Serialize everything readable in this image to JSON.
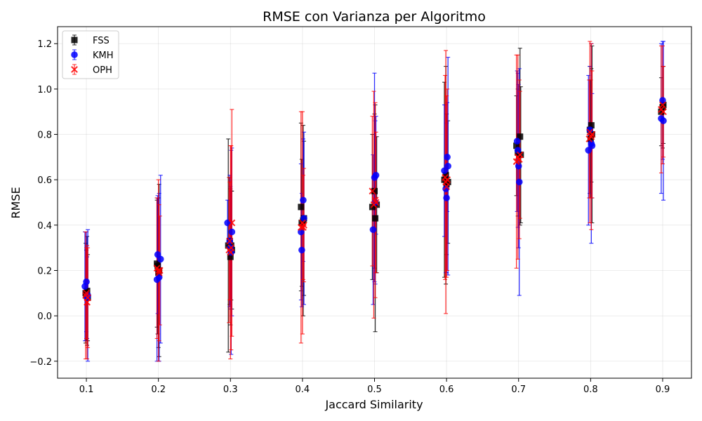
{
  "chart_data": {
    "type": "scatter",
    "title": "RMSE con Varianza per Algoritmo",
    "xlabel": "Jaccard Similarity",
    "ylabel": "RMSE",
    "xlim": [
      0.06,
      0.94
    ],
    "ylim": [
      -0.275,
      1.275
    ],
    "xticks": [
      0.1,
      0.2,
      0.3,
      0.4,
      0.5,
      0.6,
      0.7,
      0.8,
      0.9
    ],
    "xtick_labels": [
      "0.1",
      "0.2",
      "0.3",
      "0.4",
      "0.5",
      "0.6",
      "0.7",
      "0.8",
      "0.9"
    ],
    "yticks": [
      -0.2,
      0.0,
      0.2,
      0.4,
      0.6,
      0.8,
      1.0,
      1.2
    ],
    "ytick_labels": [
      "−0.2",
      "0.0",
      "0.2",
      "0.4",
      "0.6",
      "0.8",
      "1.0",
      "1.2"
    ],
    "grid": true,
    "legend_position": "top-left",
    "series": [
      {
        "name": "FSS",
        "color": "#000000",
        "marker": "square",
        "points": [
          {
            "x": 0.099,
            "y": 0.1,
            "err": 0.22
          },
          {
            "x": 0.101,
            "y": 0.11,
            "err": 0.24
          },
          {
            "x": 0.1,
            "y": 0.09,
            "err": 0.2
          },
          {
            "x": 0.102,
            "y": 0.08,
            "err": 0.19
          },
          {
            "x": 0.199,
            "y": 0.22,
            "err": 0.3
          },
          {
            "x": 0.201,
            "y": 0.2,
            "err": 0.38
          },
          {
            "x": 0.2,
            "y": 0.19,
            "err": 0.33
          },
          {
            "x": 0.198,
            "y": 0.23,
            "err": 0.28
          },
          {
            "x": 0.297,
            "y": 0.31,
            "err": 0.47
          },
          {
            "x": 0.3,
            "y": 0.26,
            "err": 0.3
          },
          {
            "x": 0.302,
            "y": 0.29,
            "err": 0.26
          },
          {
            "x": 0.299,
            "y": 0.33,
            "err": 0.28
          },
          {
            "x": 0.301,
            "y": 0.31,
            "err": 0.24
          },
          {
            "x": 0.398,
            "y": 0.48,
            "err": 0.37
          },
          {
            "x": 0.401,
            "y": 0.42,
            "err": 0.42
          },
          {
            "x": 0.402,
            "y": 0.43,
            "err": 0.34
          },
          {
            "x": 0.399,
            "y": 0.41,
            "err": 0.28
          },
          {
            "x": 0.497,
            "y": 0.48,
            "err": 0.32
          },
          {
            "x": 0.5,
            "y": 0.55,
            "err": 0.34
          },
          {
            "x": 0.501,
            "y": 0.43,
            "err": 0.5
          },
          {
            "x": 0.503,
            "y": 0.49,
            "err": 0.3
          },
          {
            "x": 0.597,
            "y": 0.6,
            "err": 0.43
          },
          {
            "x": 0.599,
            "y": 0.62,
            "err": 0.48
          },
          {
            "x": 0.602,
            "y": 0.59,
            "err": 0.27
          },
          {
            "x": 0.6,
            "y": 0.58,
            "err": 0.31
          },
          {
            "x": 0.697,
            "y": 0.75,
            "err": 0.22
          },
          {
            "x": 0.702,
            "y": 0.79,
            "err": 0.39
          },
          {
            "x": 0.703,
            "y": 0.71,
            "err": 0.3
          },
          {
            "x": 0.699,
            "y": 0.72,
            "err": 0.28
          },
          {
            "x": 0.799,
            "y": 0.82,
            "err": 0.28
          },
          {
            "x": 0.801,
            "y": 0.84,
            "err": 0.25
          },
          {
            "x": 0.802,
            "y": 0.8,
            "err": 0.39
          },
          {
            "x": 0.8,
            "y": 0.78,
            "err": 0.26
          },
          {
            "x": 0.898,
            "y": 0.9,
            "err": 0.15
          },
          {
            "x": 0.901,
            "y": 0.93,
            "err": 0.17
          },
          {
            "x": 0.9,
            "y": 0.92,
            "err": 0.18
          }
        ]
      },
      {
        "name": "KMH",
        "color": "#0000ff",
        "marker": "circle",
        "points": [
          {
            "x": 0.098,
            "y": 0.13,
            "err": 0.24
          },
          {
            "x": 0.1,
            "y": 0.15,
            "err": 0.22
          },
          {
            "x": 0.102,
            "y": 0.09,
            "err": 0.29
          },
          {
            "x": 0.101,
            "y": 0.08,
            "err": 0.18
          },
          {
            "x": 0.198,
            "y": 0.16,
            "err": 0.36
          },
          {
            "x": 0.199,
            "y": 0.27,
            "err": 0.26
          },
          {
            "x": 0.201,
            "y": 0.17,
            "err": 0.37
          },
          {
            "x": 0.203,
            "y": 0.25,
            "err": 0.37
          },
          {
            "x": 0.296,
            "y": 0.41,
            "err": 0.1
          },
          {
            "x": 0.299,
            "y": 0.33,
            "err": 0.29
          },
          {
            "x": 0.3,
            "y": 0.3,
            "err": 0.27
          },
          {
            "x": 0.302,
            "y": 0.37,
            "err": 0.37
          },
          {
            "x": 0.301,
            "y": 0.28,
            "err": 0.45
          },
          {
            "x": 0.398,
            "y": 0.37,
            "err": 0.3
          },
          {
            "x": 0.399,
            "y": 0.29,
            "err": 0.25
          },
          {
            "x": 0.401,
            "y": 0.51,
            "err": 0.27
          },
          {
            "x": 0.402,
            "y": 0.43,
            "err": 0.38
          },
          {
            "x": 0.498,
            "y": 0.38,
            "err": 0.33
          },
          {
            "x": 0.5,
            "y": 0.61,
            "err": 0.46
          },
          {
            "x": 0.502,
            "y": 0.62,
            "err": 0.26
          },
          {
            "x": 0.501,
            "y": 0.5,
            "err": 0.36
          },
          {
            "x": 0.597,
            "y": 0.64,
            "err": 0.29
          },
          {
            "x": 0.599,
            "y": 0.56,
            "err": 0.37
          },
          {
            "x": 0.601,
            "y": 0.7,
            "err": 0.24
          },
          {
            "x": 0.602,
            "y": 0.66,
            "err": 0.48
          },
          {
            "x": 0.6,
            "y": 0.52,
            "err": 0.33
          },
          {
            "x": 0.698,
            "y": 0.77,
            "err": 0.31
          },
          {
            "x": 0.7,
            "y": 0.66,
            "err": 0.36
          },
          {
            "x": 0.701,
            "y": 0.59,
            "err": 0.5
          },
          {
            "x": 0.699,
            "y": 0.73,
            "err": 0.34
          },
          {
            "x": 0.797,
            "y": 0.73,
            "err": 0.33
          },
          {
            "x": 0.799,
            "y": 0.82,
            "err": 0.28
          },
          {
            "x": 0.801,
            "y": 0.76,
            "err": 0.44
          },
          {
            "x": 0.802,
            "y": 0.75,
            "err": 0.23
          },
          {
            "x": 0.898,
            "y": 0.87,
            "err": 0.33
          },
          {
            "x": 0.9,
            "y": 0.95,
            "err": 0.26
          },
          {
            "x": 0.901,
            "y": 0.86,
            "err": 0.35
          }
        ]
      },
      {
        "name": "OPH",
        "color": "#ff0000",
        "marker": "x",
        "points": [
          {
            "x": 0.099,
            "y": 0.09,
            "err": 0.28
          },
          {
            "x": 0.1,
            "y": 0.1,
            "err": 0.2
          },
          {
            "x": 0.101,
            "y": 0.06,
            "err": 0.25
          },
          {
            "x": 0.102,
            "y": 0.08,
            "err": 0.22
          },
          {
            "x": 0.198,
            "y": 0.21,
            "err": 0.31
          },
          {
            "x": 0.2,
            "y": 0.2,
            "err": 0.4
          },
          {
            "x": 0.201,
            "y": 0.19,
            "err": 0.3
          },
          {
            "x": 0.202,
            "y": 0.2,
            "err": 0.24
          },
          {
            "x": 0.298,
            "y": 0.29,
            "err": 0.32
          },
          {
            "x": 0.3,
            "y": 0.28,
            "err": 0.47
          },
          {
            "x": 0.302,
            "y": 0.41,
            "err": 0.5
          },
          {
            "x": 0.301,
            "y": 0.3,
            "err": 0.45
          },
          {
            "x": 0.299,
            "y": 0.33,
            "err": 0.26
          },
          {
            "x": 0.398,
            "y": 0.39,
            "err": 0.51
          },
          {
            "x": 0.4,
            "y": 0.41,
            "err": 0.49
          },
          {
            "x": 0.401,
            "y": 0.39,
            "err": 0.23
          },
          {
            "x": 0.402,
            "y": 0.4,
            "err": 0.25
          },
          {
            "x": 0.497,
            "y": 0.55,
            "err": 0.33
          },
          {
            "x": 0.499,
            "y": 0.49,
            "err": 0.5
          },
          {
            "x": 0.501,
            "y": 0.51,
            "err": 0.43
          },
          {
            "x": 0.502,
            "y": 0.5,
            "err": 0.31
          },
          {
            "x": 0.598,
            "y": 0.61,
            "err": 0.45
          },
          {
            "x": 0.599,
            "y": 0.59,
            "err": 0.58
          },
          {
            "x": 0.601,
            "y": 0.6,
            "err": 0.4
          },
          {
            "x": 0.6,
            "y": 0.57,
            "err": 0.4
          },
          {
            "x": 0.697,
            "y": 0.68,
            "err": 0.47
          },
          {
            "x": 0.699,
            "y": 0.7,
            "err": 0.45
          },
          {
            "x": 0.701,
            "y": 0.69,
            "err": 0.35
          },
          {
            "x": 0.702,
            "y": 0.71,
            "err": 0.28
          },
          {
            "x": 0.798,
            "y": 0.78,
            "err": 0.26
          },
          {
            "x": 0.799,
            "y": 0.81,
            "err": 0.4
          },
          {
            "x": 0.801,
            "y": 0.79,
            "err": 0.41
          },
          {
            "x": 0.802,
            "y": 0.8,
            "err": 0.28
          },
          {
            "x": 0.898,
            "y": 0.91,
            "err": 0.28
          },
          {
            "x": 0.9,
            "y": 0.93,
            "err": 0.26
          },
          {
            "x": 0.901,
            "y": 0.9,
            "err": 0.2
          }
        ]
      }
    ]
  }
}
